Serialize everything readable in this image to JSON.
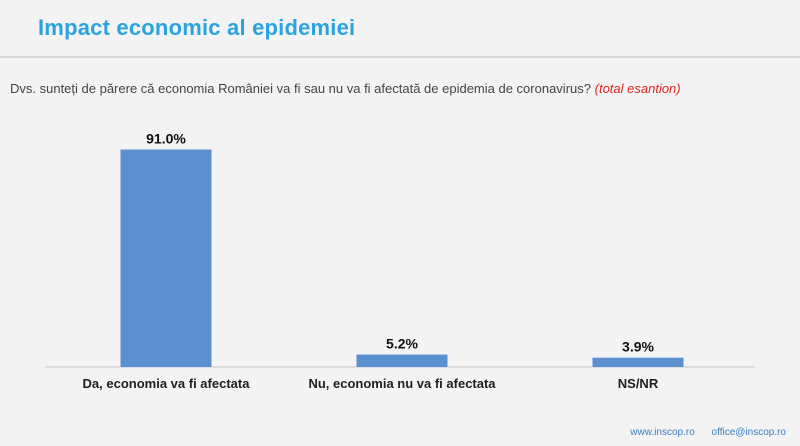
{
  "slide": {
    "title": "Impact economic al epidemiei",
    "question": "Dvs. sunteți de părere că economia României va fi sau nu va fi afectată de epidemia de coronavirus?",
    "question_note": "(total esantion)",
    "footer": {
      "website": "www.inscop.ro",
      "email": "office@inscop.ro"
    }
  },
  "colors": {
    "title": "#2aa3de",
    "bar": "#5b8fd0",
    "note": "#e0261f"
  },
  "chart_data": {
    "type": "bar",
    "categories": [
      "Da, economia va fi afectata",
      "Nu, economia nu va fi afectata",
      "NS/NR"
    ],
    "values": [
      91.0,
      5.2,
      3.9
    ],
    "data_labels": [
      "91.0%",
      "5.2%",
      "3.9%"
    ],
    "title": "",
    "xlabel": "",
    "ylabel": "",
    "ylim": [
      0,
      100
    ],
    "grid": false,
    "legend": "none"
  }
}
